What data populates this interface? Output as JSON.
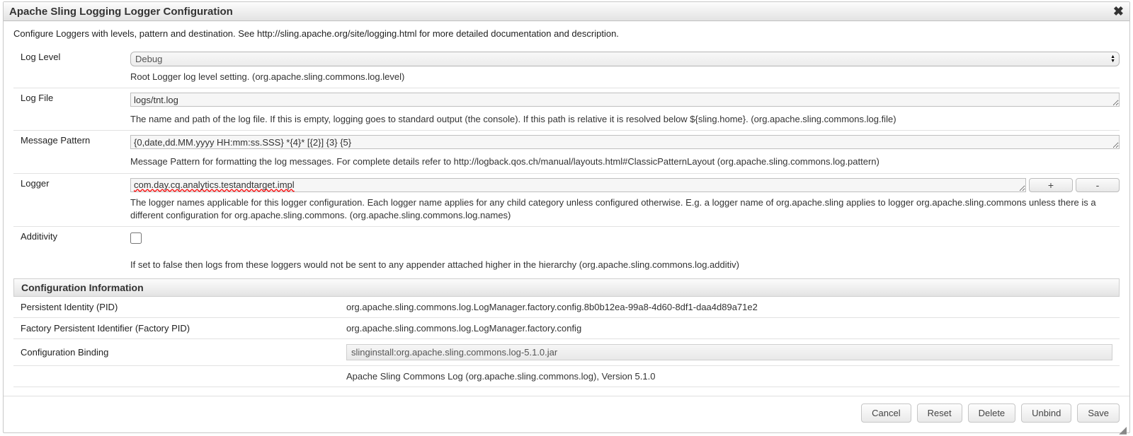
{
  "dialog": {
    "title": "Apache Sling Logging Logger Configuration",
    "intro": "Configure Loggers with levels, pattern and destination. See http://sling.apache.org/site/logging.html for more detailed documentation and description."
  },
  "fields": {
    "log_level": {
      "label": "Log Level",
      "value": "Debug",
      "help": "Root Logger log level setting. (org.apache.sling.commons.log.level)"
    },
    "log_file": {
      "label": "Log File",
      "value": "logs/tnt.log",
      "help": "The name and path of the log file. If this is empty, logging goes to standard output (the console). If this path is relative it is resolved below ${sling.home}. (org.apache.sling.commons.log.file)"
    },
    "pattern": {
      "label": "Message Pattern",
      "value": "{0,date,dd.MM.yyyy HH:mm:ss.SSS} *{4}* [{2}] {3} {5}",
      "help": "Message Pattern for formatting the log messages. For complete details refer to http://logback.qos.ch/manual/layouts.html#ClassicPatternLayout (org.apache.sling.commons.log.pattern)"
    },
    "logger": {
      "label": "Logger",
      "value": "com.day.cq.analytics.testandtarget.impl",
      "add": "+",
      "remove": "-",
      "help": "The logger names applicable for this logger configuration. Each logger name applies for any child category unless configured otherwise. E.g. a logger name of org.apache.sling applies to logger org.apache.sling.commons unless there is a different configuration for org.apache.sling.commons. (org.apache.sling.commons.log.names)"
    },
    "additivity": {
      "label": "Additivity",
      "checked": false,
      "help": "If set to false then logs from these loggers would not be sent to any appender attached higher in the hierarchy (org.apache.sling.commons.log.additiv)"
    }
  },
  "config_info": {
    "header": "Configuration Information",
    "pid": {
      "label": "Persistent Identity (PID)",
      "value": "org.apache.sling.commons.log.LogManager.factory.config.8b0b12ea-99a8-4d60-8df1-daa4d89a71e2"
    },
    "factory_pid": {
      "label": "Factory Persistent Identifier (Factory PID)",
      "value": "org.apache.sling.commons.log.LogManager.factory.config"
    },
    "binding": {
      "label": "Configuration Binding",
      "value": "slinginstall:org.apache.sling.commons.log-5.1.0.jar"
    },
    "bundle": "Apache Sling Commons Log (org.apache.sling.commons.log), Version 5.1.0"
  },
  "buttons": {
    "cancel": "Cancel",
    "reset": "Reset",
    "delete": "Delete",
    "unbind": "Unbind",
    "save": "Save"
  }
}
